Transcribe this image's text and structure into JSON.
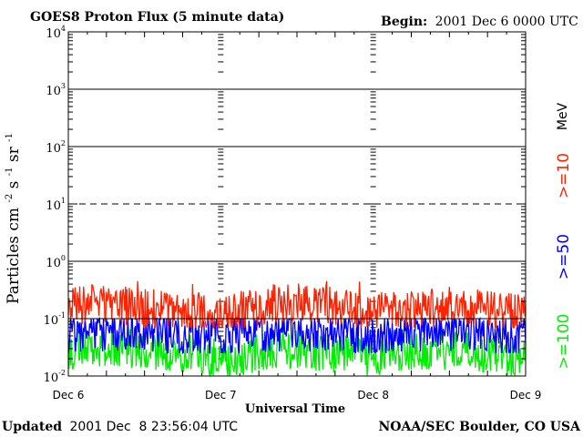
{
  "chart_data": {
    "type": "line",
    "title": "GOES8 Proton Flux (5 minute data)",
    "begin_label": "Begin:",
    "begin_value": "2001 Dec 6 0000 UTC",
    "xlabel": "Universal Time",
    "ylabel_prefix": "Particles cm",
    "ylabel_units": [
      "-2",
      "s",
      "-1",
      "sr",
      "-1"
    ],
    "scale": "log",
    "ylim": [
      0.01,
      10000
    ],
    "xlim": [
      0,
      3
    ],
    "x_ticks": [
      {
        "value": 0,
        "label": "Dec 6"
      },
      {
        "value": 1,
        "label": "Dec 7"
      },
      {
        "value": 2,
        "label": "Dec 8"
      },
      {
        "value": 3,
        "label": "Dec 9"
      }
    ],
    "y_ticks": [
      {
        "base": "10",
        "exp": "-2",
        "value": 0.01
      },
      {
        "base": "10",
        "exp": "-1",
        "value": 0.1
      },
      {
        "base": "10",
        "exp": "0",
        "value": 1
      },
      {
        "base": "10",
        "exp": "1",
        "value": 10
      },
      {
        "base": "10",
        "exp": "2",
        "value": 100
      },
      {
        "base": "10",
        "exp": "3",
        "value": 1000
      },
      {
        "base": "10",
        "exp": "4",
        "value": 10000
      }
    ],
    "threshold_lines": [
      {
        "value": 10,
        "style": "dashed"
      },
      {
        "value": 0.1,
        "style": "solid"
      }
    ],
    "legend_unit": "MeV",
    "series": [
      {
        "name": ">=10",
        "color": "#ff2200",
        "x": [
          0,
          0.25,
          0.5,
          0.75,
          1,
          1.25,
          1.5,
          1.75,
          2,
          2.25,
          2.5,
          2.75,
          3
        ],
        "values": [
          0.17,
          0.18,
          0.15,
          0.14,
          0.12,
          0.16,
          0.2,
          0.16,
          0.13,
          0.15,
          0.17,
          0.15,
          0.12
        ],
        "min": 0.07,
        "max": 0.45
      },
      {
        "name": ">=50",
        "color": "#0000ff",
        "x": [
          0,
          0.25,
          0.5,
          0.75,
          1,
          1.25,
          1.5,
          1.75,
          2,
          2.25,
          2.5,
          2.75,
          3
        ],
        "values": [
          0.055,
          0.06,
          0.06,
          0.05,
          0.045,
          0.055,
          0.06,
          0.055,
          0.05,
          0.06,
          0.055,
          0.05,
          0.045
        ],
        "min": 0.025,
        "max": 0.1
      },
      {
        "name": ">=100",
        "color": "#00ee00",
        "x": [
          0,
          0.25,
          0.5,
          0.75,
          1,
          1.25,
          1.5,
          1.75,
          2,
          2.25,
          2.5,
          2.75,
          3
        ],
        "values": [
          0.025,
          0.03,
          0.03,
          0.025,
          0.02,
          0.025,
          0.03,
          0.025,
          0.022,
          0.028,
          0.028,
          0.025,
          0.02
        ],
        "min": 0.01,
        "max": 0.065
      }
    ]
  },
  "footer": {
    "updated_label": "Updated",
    "updated_value": "2001 Dec  8 23:56:04 UTC",
    "source": "NOAA/SEC Boulder, CO USA"
  }
}
